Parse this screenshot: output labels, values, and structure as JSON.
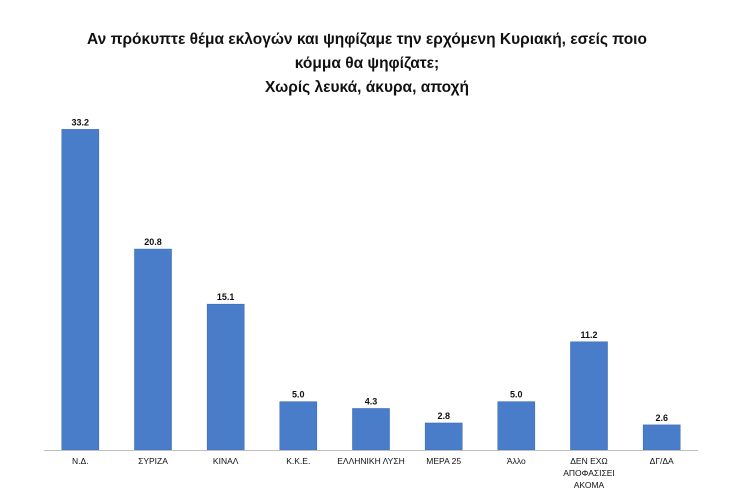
{
  "chart_data": {
    "type": "bar",
    "title": [
      "Αν πρόκυπτε θέμα εκλογών και ψηφίζαμε την ερχόμενη Κυριακή, εσείς ποιο",
      "κόμμα θα ψηφίζατε;",
      "Χωρίς λευκά, άκυρα, αποχή"
    ],
    "categories": [
      [
        "Ν.Δ."
      ],
      [
        "ΣΥΡΙΖΑ"
      ],
      [
        "ΚΙΝΑΛ"
      ],
      [
        "Κ.Κ.Ε."
      ],
      [
        "ΕΛΛΗΝΙΚΗ ΛΥΣΗ"
      ],
      [
        "ΜΕΡΑ 25"
      ],
      [
        "Άλλο"
      ],
      [
        "ΔΕΝ ΕΧΩ",
        "ΑΠΟΦΑΣΙΣΕΙ",
        "ΑΚΟΜΑ"
      ],
      [
        "ΔΓ/ΔΑ"
      ]
    ],
    "values": [
      33.2,
      20.8,
      15.1,
      5.0,
      4.3,
      2.8,
      5.0,
      11.2,
      2.6
    ],
    "value_labels": [
      "33.2",
      "20.8",
      "15.1",
      "5.0",
      "4.3",
      "2.8",
      "5.0",
      "11.2",
      "2.6"
    ],
    "ylim": [
      0,
      35
    ],
    "grid": false,
    "legend": "none",
    "colors": {
      "bar": "#4a7dc9",
      "bar_edge": "#3f6db3",
      "axis": "#bfbfbf",
      "text": "#111111"
    }
  }
}
